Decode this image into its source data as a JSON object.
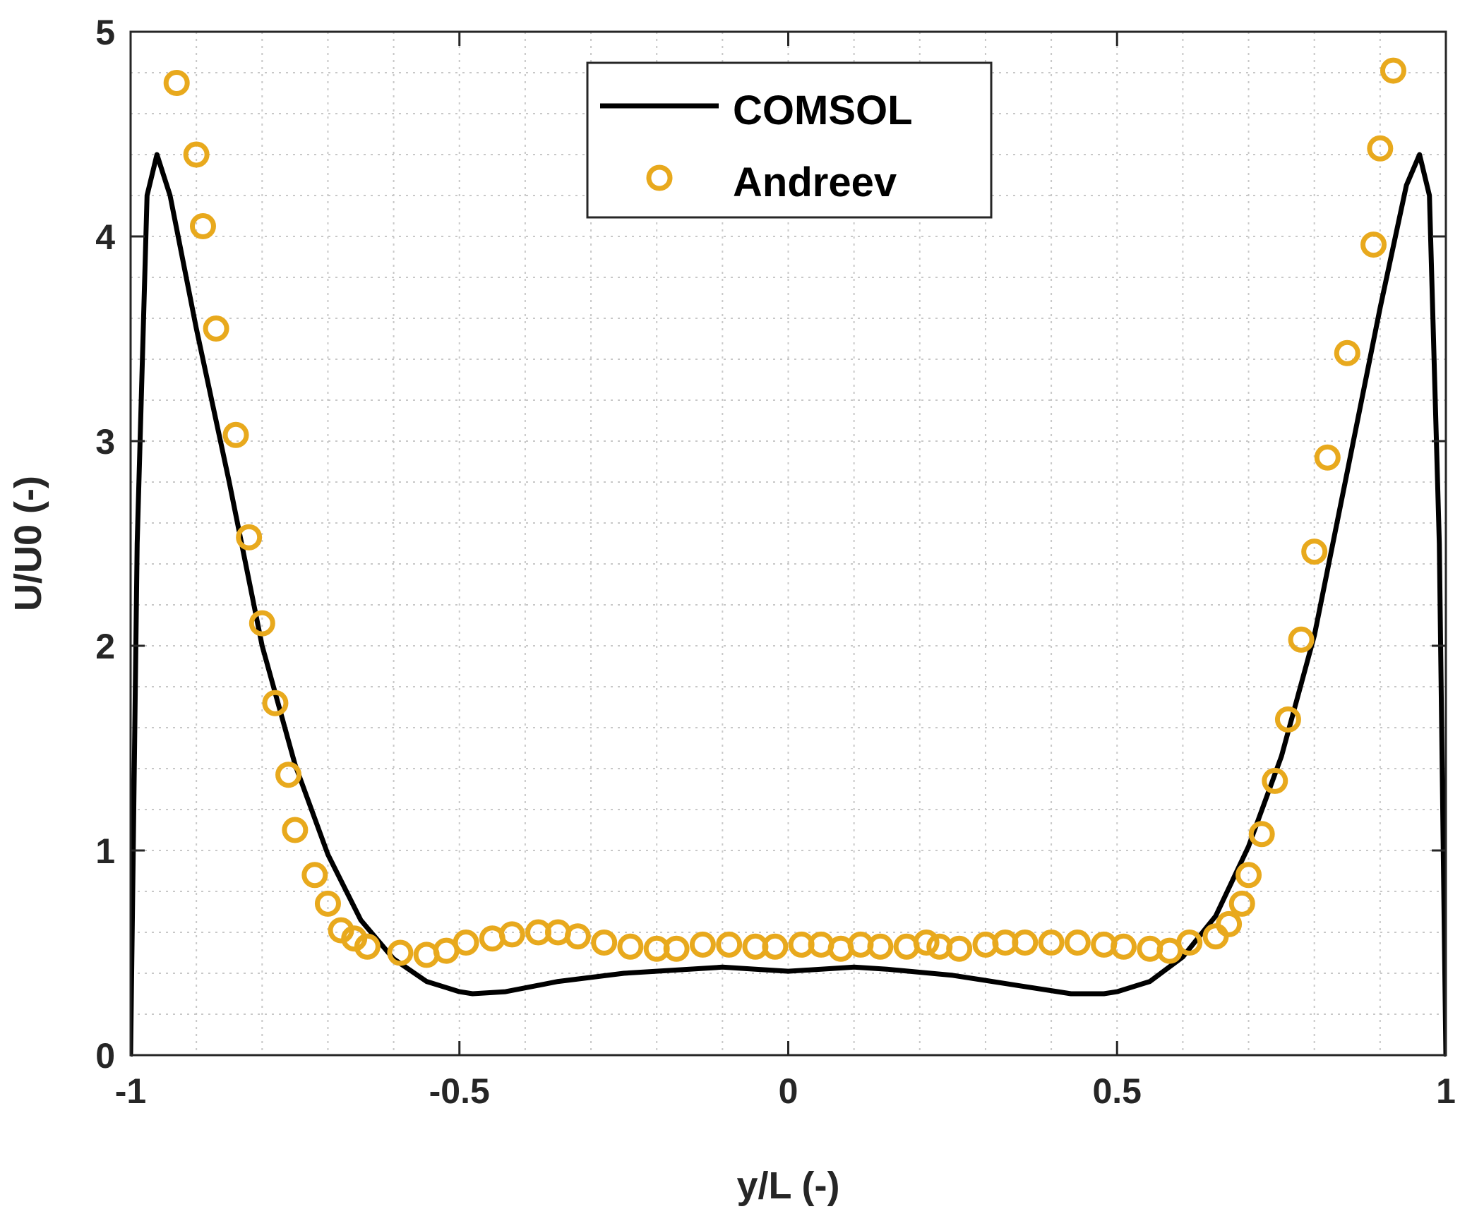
{
  "chart_data": {
    "type": "line",
    "title": "",
    "xlabel": "y/L (-)",
    "ylabel": "U/U0 (-)",
    "xlim": [
      -1,
      1
    ],
    "ylim": [
      0,
      5
    ],
    "xticks": [
      -1,
      -0.5,
      0,
      0.5,
      1
    ],
    "xtick_labels": [
      "-1",
      "-0.5",
      "0",
      "0.5",
      "1"
    ],
    "yticks": [
      0,
      1,
      2,
      3,
      4,
      5
    ],
    "ytick_labels": [
      "0",
      "1",
      "2",
      "3",
      "4",
      "5"
    ],
    "grid": true,
    "legend_position": "top-center",
    "colors": {
      "comsol": "#000000",
      "andreev": "#E8A91D",
      "axis": "#262626",
      "grid": "#c8c8c8"
    },
    "series": [
      {
        "name": "COMSOL",
        "style": "line",
        "x": [
          -1.0,
          -0.99,
          -0.975,
          -0.96,
          -0.94,
          -0.9,
          -0.85,
          -0.8,
          -0.75,
          -0.7,
          -0.65,
          -0.6,
          -0.55,
          -0.5,
          -0.48,
          -0.43,
          -0.35,
          -0.25,
          -0.15,
          -0.1,
          -0.05,
          0.0,
          0.05,
          0.1,
          0.15,
          0.25,
          0.35,
          0.43,
          0.48,
          0.5,
          0.55,
          0.6,
          0.65,
          0.7,
          0.75,
          0.8,
          0.85,
          0.9,
          0.94,
          0.96,
          0.975,
          0.99,
          1.0
        ],
        "y": [
          0.0,
          2.5,
          4.2,
          4.4,
          4.2,
          3.55,
          2.8,
          2.0,
          1.42,
          0.98,
          0.66,
          0.47,
          0.36,
          0.31,
          0.3,
          0.31,
          0.36,
          0.4,
          0.42,
          0.43,
          0.42,
          0.41,
          0.42,
          0.43,
          0.42,
          0.39,
          0.34,
          0.3,
          0.3,
          0.31,
          0.36,
          0.48,
          0.68,
          1.02,
          1.46,
          2.05,
          2.85,
          3.65,
          4.25,
          4.4,
          4.2,
          2.5,
          0.0
        ]
      },
      {
        "name": "Andreev",
        "style": "markers",
        "x": [
          -0.93,
          -0.9,
          -0.89,
          -0.87,
          -0.84,
          -0.82,
          -0.8,
          -0.78,
          -0.76,
          -0.75,
          -0.72,
          -0.7,
          -0.68,
          -0.66,
          -0.64,
          -0.59,
          -0.55,
          -0.52,
          -0.49,
          -0.45,
          -0.42,
          -0.38,
          -0.35,
          -0.32,
          -0.28,
          -0.24,
          -0.2,
          -0.17,
          -0.13,
          -0.09,
          -0.05,
          -0.02,
          0.02,
          0.05,
          0.08,
          0.11,
          0.14,
          0.18,
          0.21,
          0.23,
          0.26,
          0.3,
          0.33,
          0.36,
          0.4,
          0.44,
          0.48,
          0.51,
          0.55,
          0.58,
          0.61,
          0.65,
          0.67,
          0.69,
          0.7,
          0.72,
          0.74,
          0.76,
          0.78,
          0.8,
          0.82,
          0.85,
          0.89,
          0.9,
          0.92
        ],
        "y": [
          4.75,
          4.4,
          4.05,
          3.55,
          3.03,
          2.53,
          2.11,
          1.72,
          1.37,
          1.1,
          0.88,
          0.74,
          0.61,
          0.57,
          0.53,
          0.5,
          0.49,
          0.51,
          0.55,
          0.57,
          0.59,
          0.6,
          0.6,
          0.58,
          0.55,
          0.53,
          0.52,
          0.52,
          0.54,
          0.54,
          0.53,
          0.53,
          0.54,
          0.54,
          0.52,
          0.54,
          0.53,
          0.53,
          0.55,
          0.53,
          0.52,
          0.54,
          0.55,
          0.55,
          0.55,
          0.55,
          0.54,
          0.53,
          0.52,
          0.51,
          0.55,
          0.58,
          0.64,
          0.74,
          0.88,
          1.08,
          1.34,
          1.64,
          2.03,
          2.46,
          2.92,
          3.43,
          3.96,
          4.43,
          4.81
        ]
      }
    ]
  }
}
